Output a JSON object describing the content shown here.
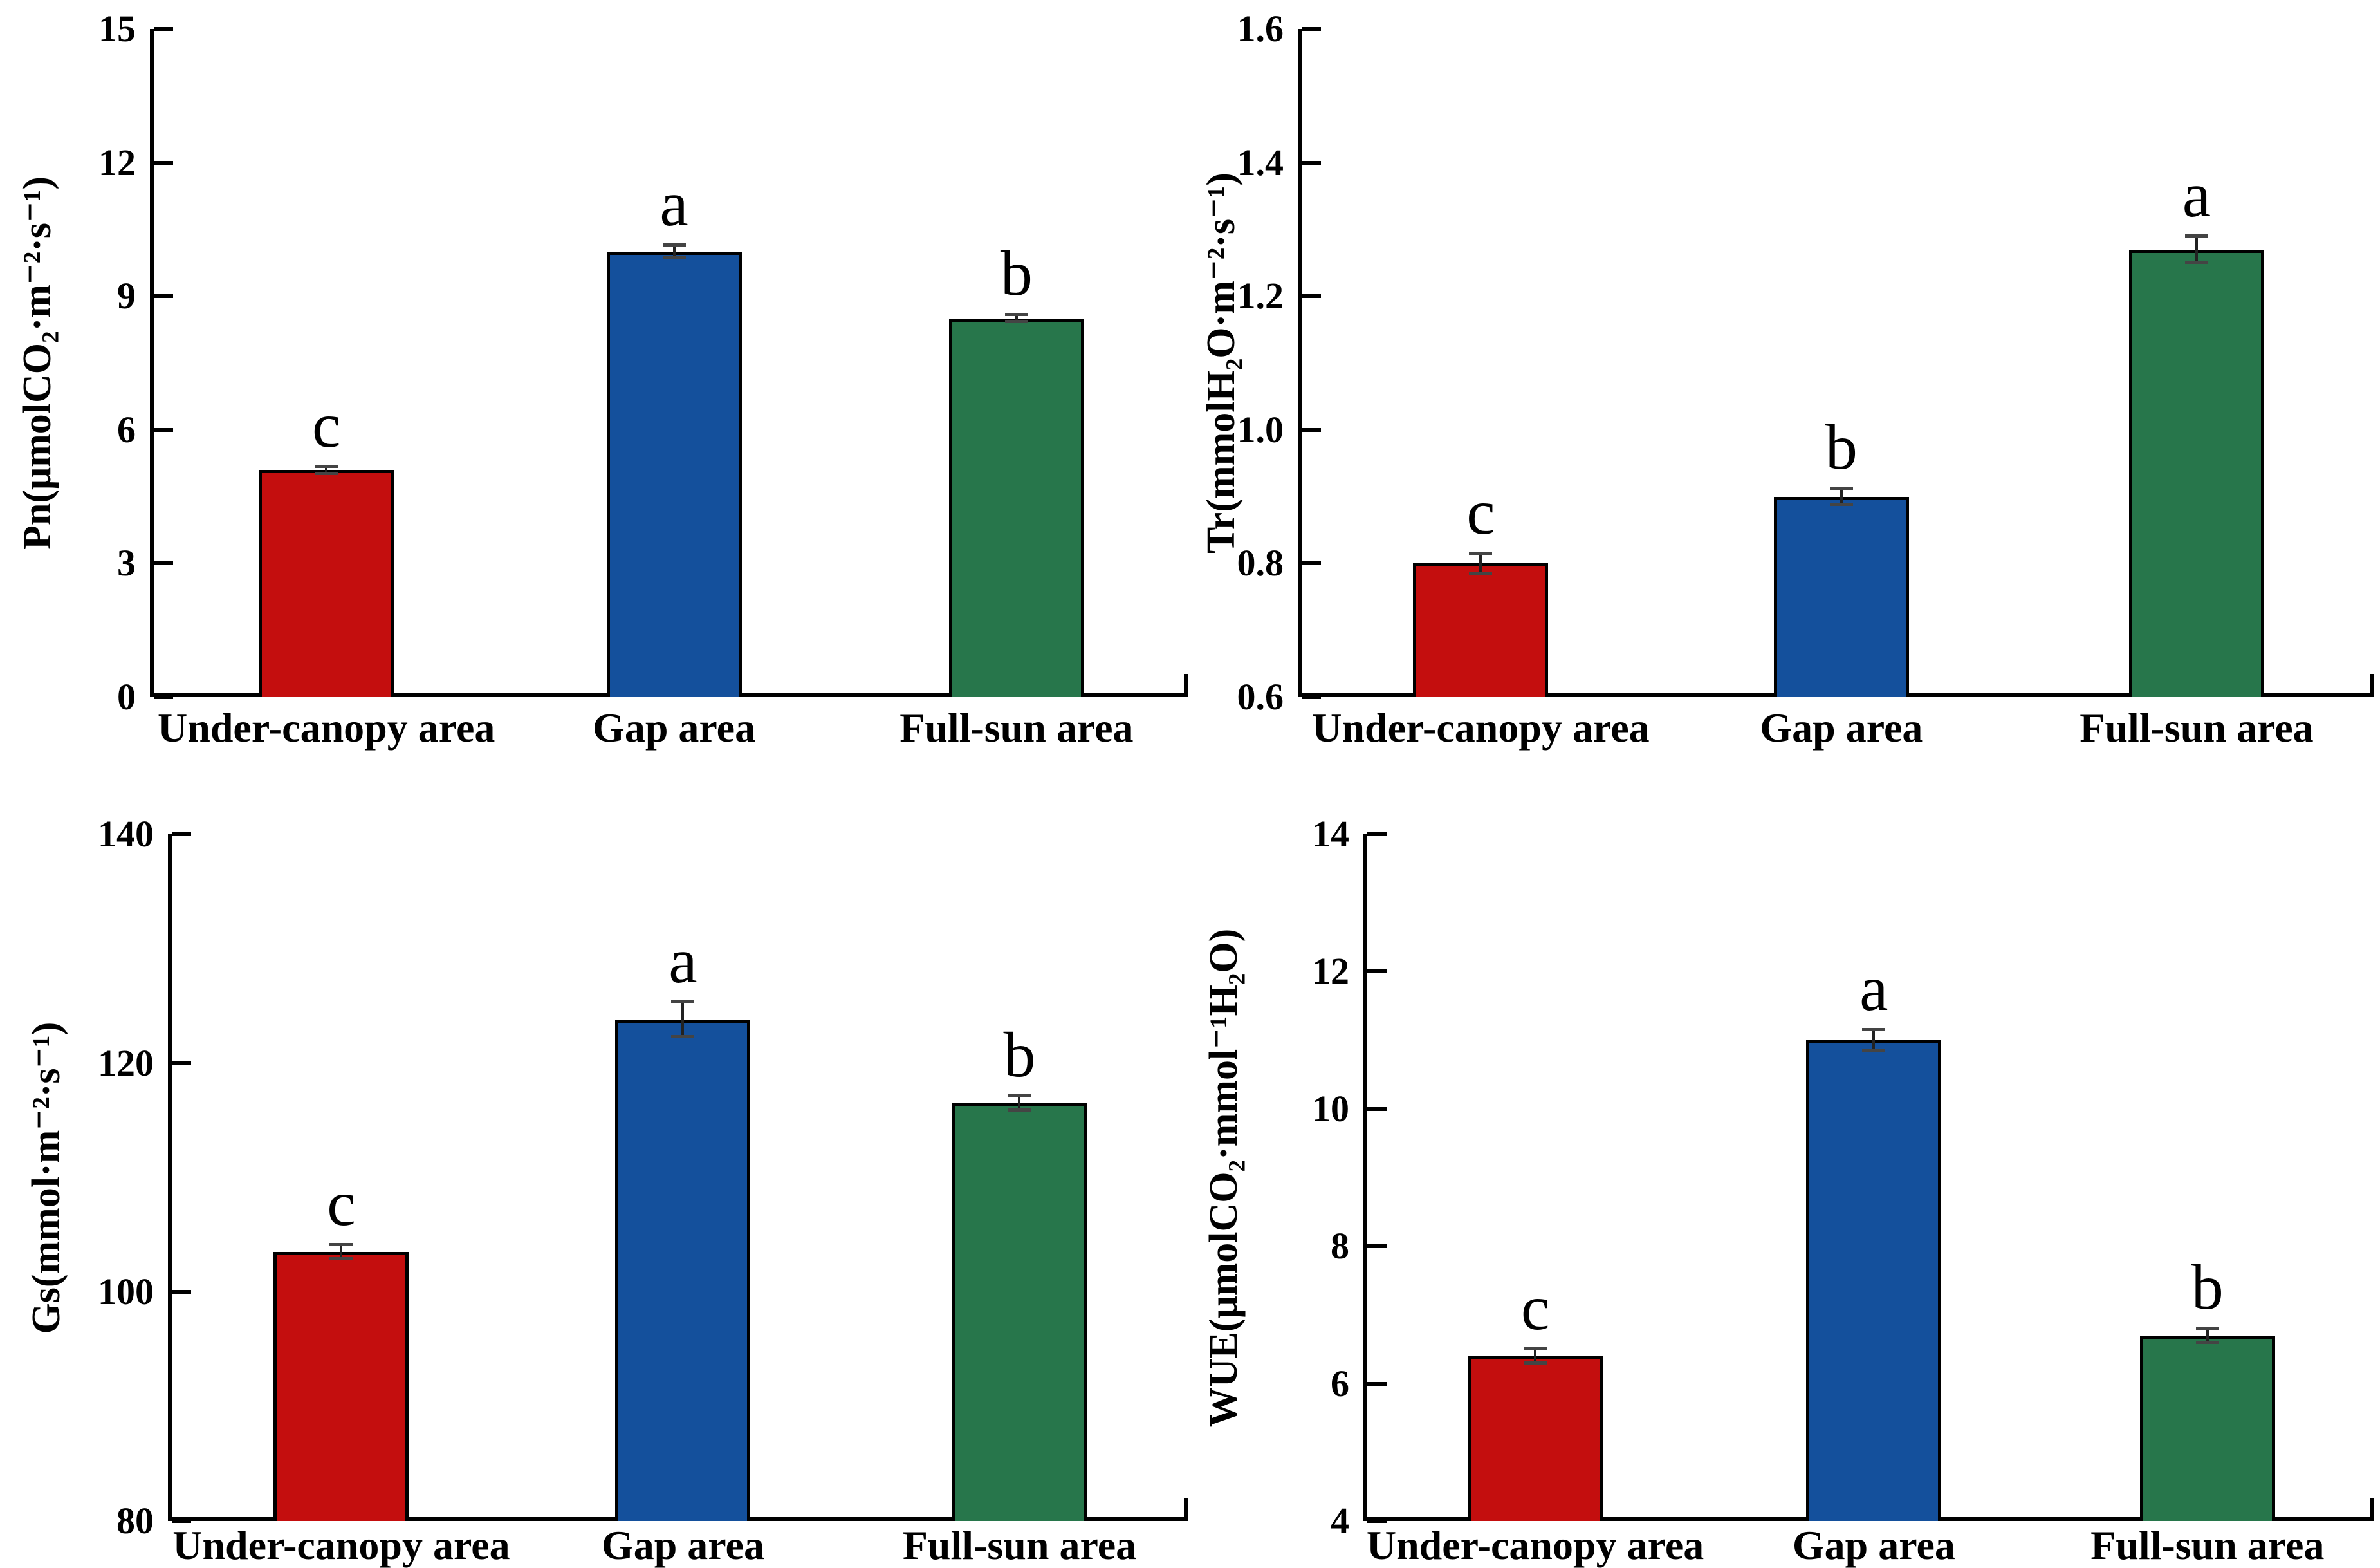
{
  "figure": {
    "background": "#ffffff"
  },
  "categories": [
    "Under-canopy area",
    "Gap area",
    "Full-sun area"
  ],
  "bar_colors": [
    "#c40e0e",
    "#14509c",
    "#27764b"
  ],
  "axis_color": "#000000",
  "chart_data": [
    {
      "type": "bar",
      "id": "pn",
      "ylabel": "Pn(μmolCO₂·m⁻²·s⁻¹)",
      "xlabel": "",
      "ylim": [
        0,
        15
      ],
      "yticks": [
        "0",
        "3",
        "6",
        "9",
        "12",
        "15"
      ],
      "categories": [
        "Under-canopy area",
        "Gap area",
        "Full-sun area"
      ],
      "values": [
        5.1,
        10.0,
        8.5
      ],
      "errors": [
        0.08,
        0.15,
        0.08
      ],
      "letters": [
        "c",
        "a",
        "b"
      ],
      "grid": false,
      "legend": "none"
    },
    {
      "type": "bar",
      "id": "tr",
      "ylabel": "Tr(mmolH₂O·m⁻²·s⁻¹)",
      "xlabel": "",
      "ylim": [
        0.6,
        1.6
      ],
      "yticks": [
        "0.6",
        "0.8",
        "1.0",
        "1.2",
        "1.4",
        "1.6"
      ],
      "categories": [
        "Under-canopy area",
        "Gap area",
        "Full-sun area"
      ],
      "values": [
        0.8,
        0.9,
        1.27
      ],
      "errors": [
        0.015,
        0.012,
        0.02
      ],
      "letters": [
        "c",
        "b",
        "a"
      ],
      "grid": false,
      "legend": "none"
    },
    {
      "type": "bar",
      "id": "gs",
      "ylabel": "Gs(mmol·m⁻²·s⁻¹)",
      "xlabel": "",
      "ylim": [
        80,
        140
      ],
      "yticks": [
        "80",
        "100",
        "120",
        "140"
      ],
      "categories": [
        "Under-canopy area",
        "Gap area",
        "Full-sun area"
      ],
      "values": [
        103.5,
        123.8,
        116.5
      ],
      "errors": [
        0.6,
        1.5,
        0.6
      ],
      "letters": [
        "c",
        "a",
        "b"
      ],
      "grid": false,
      "legend": "none"
    },
    {
      "type": "bar",
      "id": "wue",
      "ylabel": "WUE(μmolCO₂·mmol⁻¹H₂O)",
      "xlabel": "",
      "ylim": [
        4,
        14
      ],
      "yticks": [
        "4",
        "6",
        "8",
        "10",
        "12",
        "14"
      ],
      "categories": [
        "Under-canopy area",
        "Gap area",
        "Full-sun area"
      ],
      "values": [
        6.4,
        11.0,
        6.7
      ],
      "errors": [
        0.1,
        0.15,
        0.1
      ],
      "letters": [
        "c",
        "a",
        "b"
      ],
      "grid": false,
      "legend": "none"
    }
  ]
}
